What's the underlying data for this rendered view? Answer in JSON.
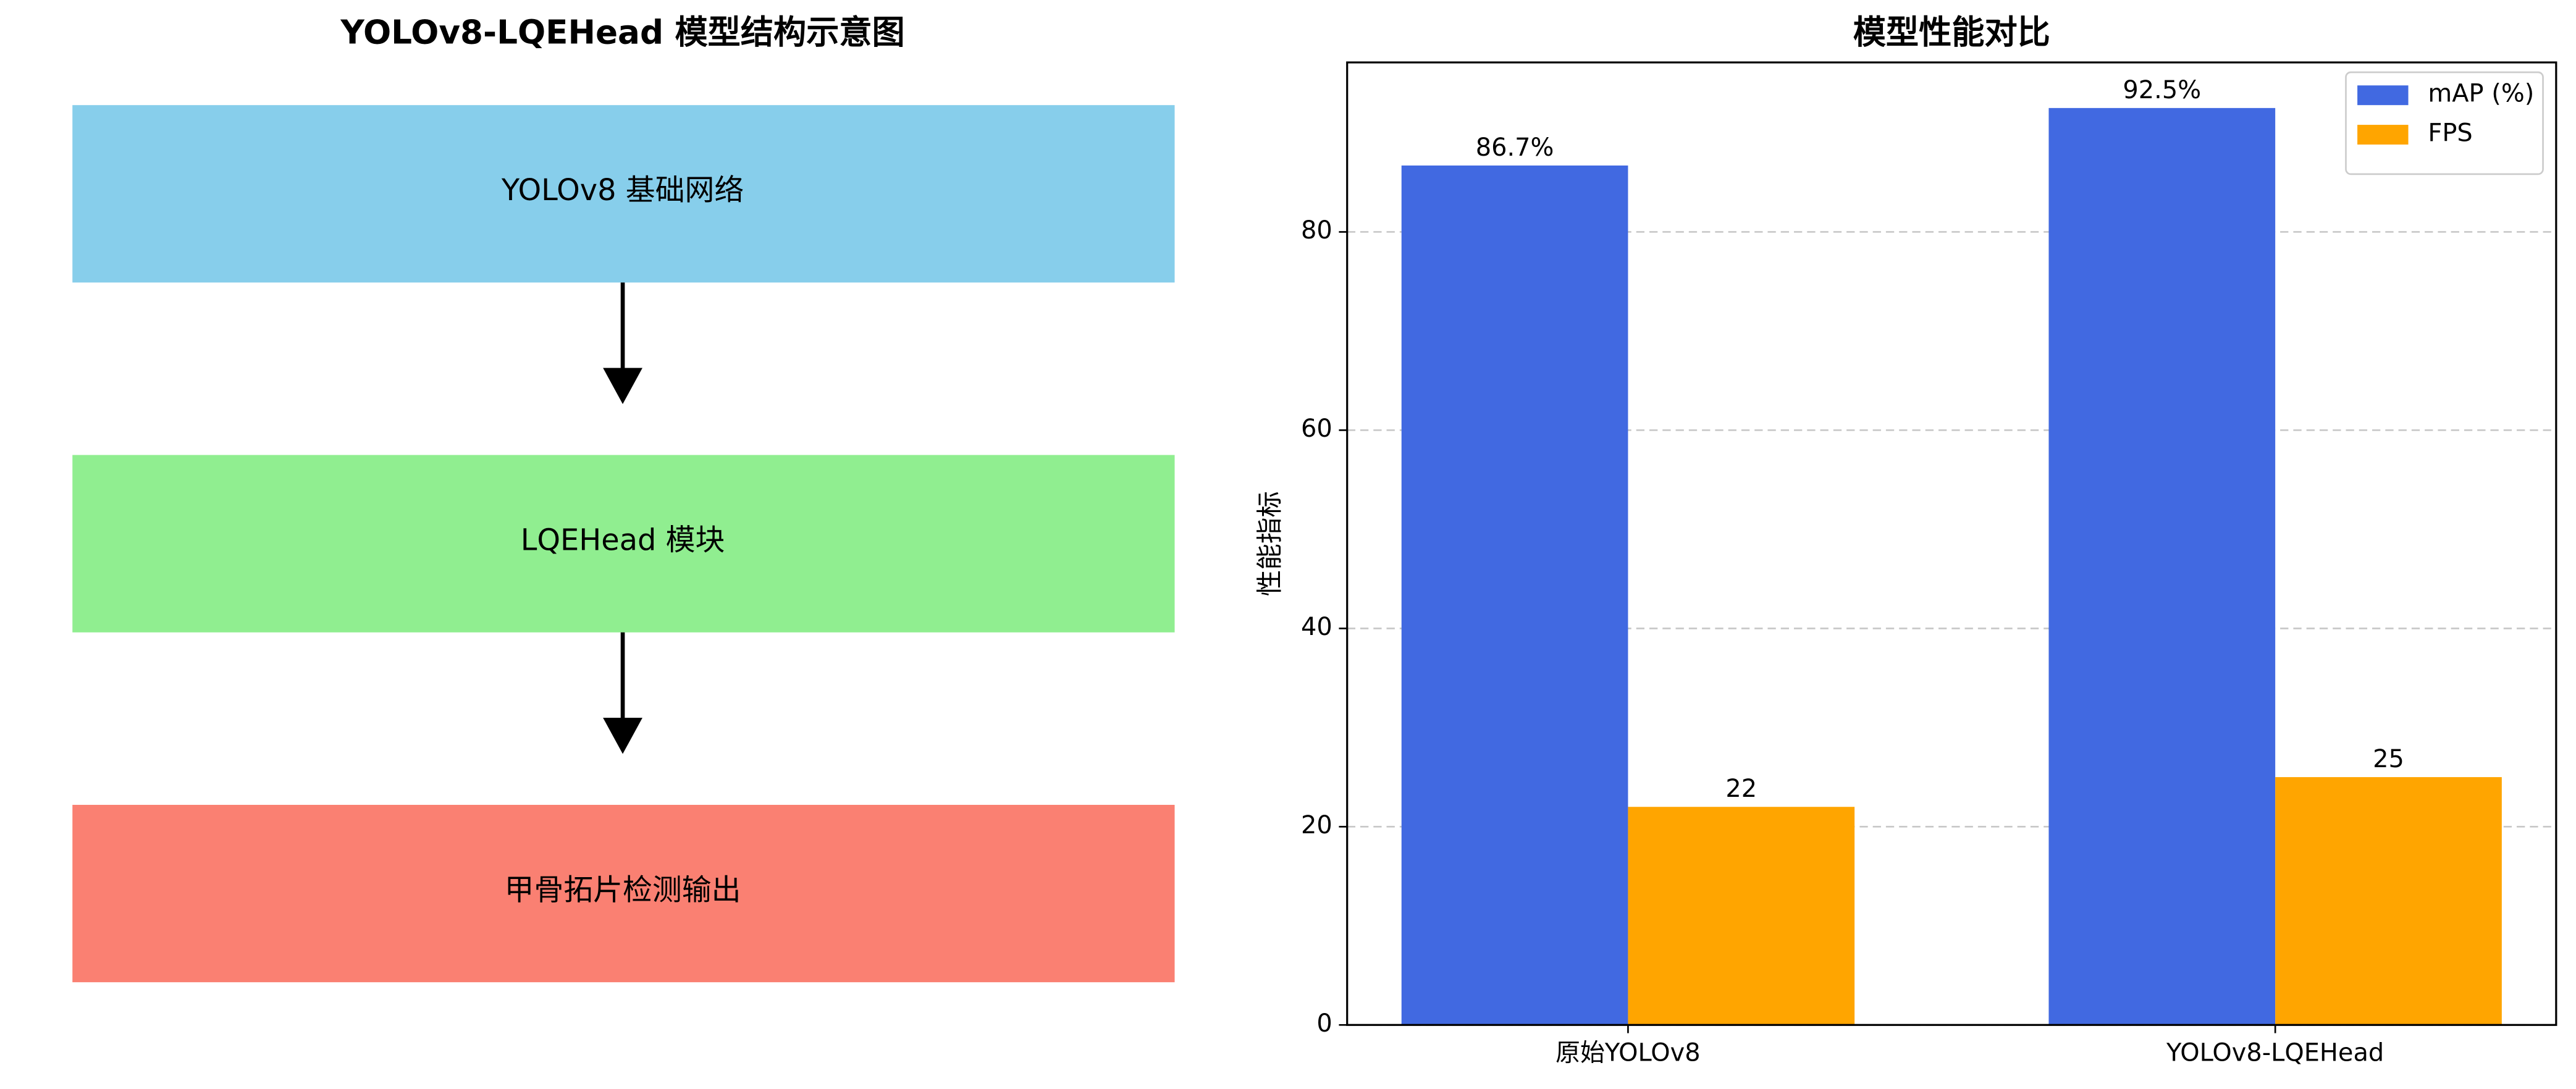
{
  "diagram": {
    "title": "YOLOv8-LQEHead 模型结构示意图",
    "nodes": [
      {
        "label": "YOLOv8 基础网络",
        "color": "#87ceeb"
      },
      {
        "label": "LQEHead 模块",
        "color": "#90ee90"
      },
      {
        "label": "甲骨拓片检测输出",
        "color": "#fa8072"
      }
    ]
  },
  "chart_data": {
    "type": "bar",
    "title": "模型性能对比",
    "y_label": "性能指标",
    "categories": [
      "原始YOLOv8",
      "YOLOv8-LQEHead"
    ],
    "series": [
      {
        "name": "mAP (%)",
        "color": "#4169e1",
        "values": [
          86.7,
          92.5
        ],
        "value_labels": [
          "86.7%",
          "92.5%"
        ]
      },
      {
        "name": "FPS",
        "color": "#ffa500",
        "values": [
          22,
          25
        ]
      }
    ],
    "ylim": [
      0,
      97.1
    ],
    "yticks": [
      0,
      20,
      40,
      60,
      80
    ],
    "grid": true,
    "legend": "upper right"
  }
}
